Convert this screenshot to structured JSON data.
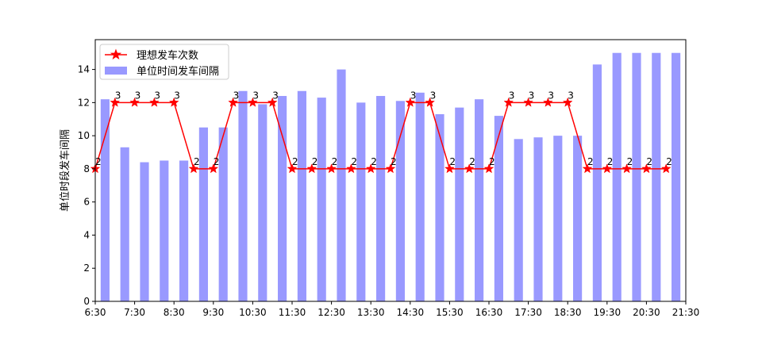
{
  "chart_data": {
    "type": "bar",
    "xlabel": "",
    "ylabel": "单位时段发车间隔",
    "ylim": [
      0,
      15.8
    ],
    "yticks": [
      "0",
      "2",
      "4",
      "6",
      "8",
      "10",
      "12",
      "14"
    ],
    "xticks": [
      "6:30",
      "7:30",
      "8:30",
      "9:30",
      "10:30",
      "11:30",
      "12:30",
      "13:30",
      "14:30",
      "15:30",
      "16:30",
      "17:30",
      "18:30",
      "19:30",
      "20:30",
      "21:30"
    ],
    "legend": {
      "placement": "top-left"
    },
    "colors": {
      "bars": "#9999ff",
      "line": "#ff0000",
      "axis": "#000000"
    },
    "series": [
      {
        "name": "理想发车次数",
        "type": "line",
        "marker": "star",
        "values": [
          8,
          12,
          12,
          12,
          12,
          8,
          8,
          12,
          12,
          12,
          8,
          8,
          8,
          8,
          8,
          8,
          12,
          12,
          8,
          8,
          8,
          12,
          12,
          12,
          12,
          8,
          8,
          8,
          8,
          8
        ],
        "labels": [
          "2",
          "3",
          "3",
          "3",
          "3",
          "2",
          "2",
          "3",
          "3",
          "3",
          "2",
          "2",
          "2",
          "2",
          "2",
          "2",
          "3",
          "3",
          "2",
          "2",
          "2",
          "3",
          "3",
          "3",
          "3",
          "2",
          "2",
          "2",
          "2",
          "2"
        ]
      },
      {
        "name": "单位时间发车间隔",
        "type": "bar",
        "values": [
          12.2,
          9.3,
          8.4,
          8.5,
          8.5,
          10.5,
          10.5,
          12.7,
          11.9,
          12.4,
          12.7,
          12.3,
          14.0,
          12.0,
          12.4,
          12.1,
          12.6,
          11.3,
          11.7,
          12.2,
          11.2,
          9.8,
          9.9,
          10.0,
          10.0,
          14.3,
          15.0,
          15.0,
          15.0,
          15.0
        ]
      }
    ]
  }
}
